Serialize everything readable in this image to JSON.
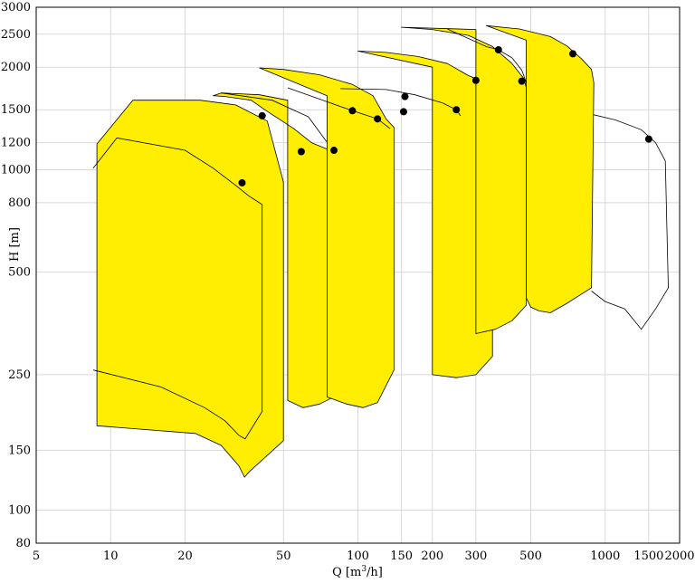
{
  "chart_data": {
    "type": "area",
    "xlabel": "Q [m³/h]",
    "xlabel_base": "Q [m",
    "xlabel_sup": "3",
    "xlabel_end": "/h]",
    "ylabel": "H [m]",
    "xscale": "log",
    "yscale": "log",
    "xlim": [
      5,
      2000
    ],
    "ylim": [
      80,
      3000
    ],
    "xticks": [
      5,
      10,
      20,
      50,
      100,
      150,
      200,
      300,
      500,
      1000,
      1500,
      2000
    ],
    "yticks": [
      80,
      100,
      150,
      250,
      500,
      800,
      1000,
      1200,
      1500,
      2000,
      2500,
      3000
    ],
    "grid": true,
    "fill_color": "#ffee00",
    "regions": [
      {
        "outline": [
          [
            12.3,
            1600
          ],
          [
            8.8,
            1190
          ],
          [
            8.8,
            177
          ],
          [
            22,
            168
          ],
          [
            28,
            155
          ],
          [
            33,
            135
          ],
          [
            34.8,
            125
          ],
          [
            36.5,
            130
          ],
          [
            50,
            160
          ],
          [
            50,
            920
          ],
          [
            43,
            1390
          ],
          [
            32,
            1550
          ],
          [
            23,
            1600
          ],
          [
            12.3,
            1600
          ]
        ],
        "inner": [
          [
            8.5,
            1010
          ],
          [
            10.6,
            1240
          ],
          [
            20,
            1140
          ],
          [
            26,
            1010
          ],
          [
            29,
            950
          ],
          [
            32,
            900
          ],
          [
            36,
            840
          ],
          [
            41,
            790
          ],
          [
            41,
            195
          ],
          [
            35,
            162
          ],
          [
            33,
            166
          ],
          [
            29,
            183
          ],
          [
            24,
            200
          ],
          [
            16,
            230
          ],
          [
            8.5,
            258
          ]
        ],
        "bep": [
          [
            41,
            1440
          ],
          [
            34,
            915
          ]
        ]
      },
      {
        "outline": [
          [
            28,
            1680
          ],
          [
            26,
            1650
          ],
          [
            29,
            1640
          ],
          [
            37,
            1600
          ],
          [
            42,
            1500
          ],
          [
            55,
            1320
          ],
          [
            65,
            1200
          ],
          [
            75,
            1150
          ],
          [
            90,
            1060
          ],
          [
            100,
            950
          ],
          [
            100,
            260
          ],
          [
            85,
            220
          ],
          [
            70,
            205
          ],
          [
            60,
            200
          ],
          [
            52,
            210
          ],
          [
            52,
            1600
          ],
          [
            40,
            1660
          ]
        ],
        "inner": [
          [
            28,
            1680
          ],
          [
            45,
            1600
          ],
          [
            63,
            1430
          ],
          [
            74,
            1220
          ],
          [
            80,
            1140
          ]
        ],
        "bep": [
          [
            59,
            1130
          ],
          [
            80,
            1140
          ]
        ]
      },
      {
        "outline": [
          [
            40,
            1990
          ],
          [
            50,
            1970
          ],
          [
            70,
            1900
          ],
          [
            95,
            1780
          ],
          [
            115,
            1650
          ],
          [
            130,
            1410
          ],
          [
            140,
            1330
          ],
          [
            140,
            258
          ],
          [
            120,
            207
          ],
          [
            105,
            200
          ],
          [
            90,
            205
          ],
          [
            75,
            215
          ],
          [
            75,
            1650
          ],
          [
            40,
            1990
          ]
        ],
        "inner": [
          [
            52,
            1740
          ],
          [
            95,
            1490
          ],
          [
            120,
            1410
          ],
          [
            135,
            1320
          ]
        ],
        "bep": [
          [
            95,
            1490
          ],
          [
            120,
            1410
          ]
        ]
      },
      {
        "outline": [
          [
            100,
            2230
          ],
          [
            130,
            2210
          ],
          [
            175,
            2150
          ],
          [
            230,
            2050
          ],
          [
            280,
            1890
          ],
          [
            330,
            1800
          ],
          [
            350,
            1600
          ],
          [
            350,
            283
          ],
          [
            300,
            250
          ],
          [
            250,
            245
          ],
          [
            200,
            250
          ],
          [
            200,
            2000
          ]
        ],
        "inner": [
          [
            85,
            1730
          ],
          [
            130,
            1720
          ],
          [
            170,
            1660
          ],
          [
            220,
            1570
          ],
          [
            250,
            1500
          ],
          [
            260,
            1440
          ]
        ],
        "bep": [
          [
            155,
            1640
          ],
          [
            250,
            1500
          ],
          [
            300,
            1830
          ],
          [
            153,
            1480
          ]
        ]
      },
      {
        "outline": [
          [
            150,
            2620
          ],
          [
            200,
            2580
          ],
          [
            280,
            2480
          ],
          [
            350,
            2300
          ],
          [
            420,
            2050
          ],
          [
            470,
            1850
          ],
          [
            480,
            1740
          ],
          [
            480,
            400
          ],
          [
            420,
            360
          ],
          [
            360,
            340
          ],
          [
            300,
            330
          ],
          [
            300,
            2580
          ]
        ],
        "inner": [
          [
            230,
            2590
          ],
          [
            330,
            2300
          ],
          [
            370,
            2250
          ],
          [
            420,
            2130
          ],
          [
            460,
            1960
          ],
          [
            480,
            1800
          ]
        ],
        "bep": [
          [
            370,
            2250
          ],
          [
            460,
            1820
          ],
          [
            740,
            2190
          ]
        ]
      },
      {
        "outline": [
          [
            330,
            2650
          ],
          [
            450,
            2590
          ],
          [
            600,
            2460
          ],
          [
            700,
            2310
          ],
          [
            800,
            2120
          ],
          [
            880,
            1970
          ],
          [
            900,
            1800
          ],
          [
            880,
            450
          ],
          [
            700,
            405
          ],
          [
            600,
            380
          ],
          [
            540,
            385
          ],
          [
            500,
            395
          ],
          [
            480,
            420
          ],
          [
            480,
            2400
          ],
          [
            330,
            2650
          ]
        ],
        "inner": [
          [
            900,
            1450
          ],
          [
            1100,
            1400
          ],
          [
            1400,
            1310
          ],
          [
            1600,
            1200
          ],
          [
            1750,
            1060
          ],
          [
            1800,
            450
          ],
          [
            1600,
            390
          ],
          [
            1400,
            340
          ],
          [
            1200,
            390
          ],
          [
            1000,
            410
          ],
          [
            880,
            440
          ]
        ],
        "bep": [
          [
            1500,
            1230
          ]
        ]
      }
    ]
  }
}
